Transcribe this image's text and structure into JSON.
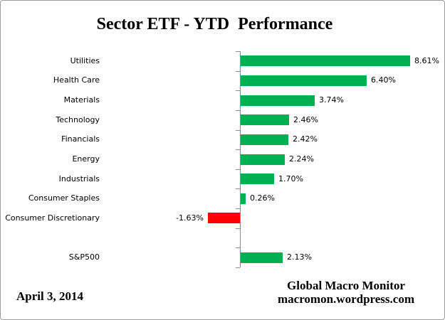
{
  "title": "Sector ETF - YTD  Performance",
  "footer": {
    "date": "April 3, 2014",
    "source_line1": "Global Macro Monitor",
    "source_line2": "macromon.wordpress.com"
  },
  "colors": {
    "positive_bar": "#00B050",
    "negative_bar": "#FF0000",
    "axis": "#8c8c8c",
    "text": "#000000",
    "background": "#ffffff",
    "frame_border": "#9a9a9a"
  },
  "chart_data": {
    "type": "bar",
    "orientation": "horizontal",
    "title": "Sector ETF - YTD  Performance",
    "xlabel": "",
    "ylabel": "",
    "xlim": [
      -2,
      10.4
    ],
    "grid": false,
    "legend": false,
    "value_label_format": "0.00%",
    "categories": [
      "Utilities",
      "Health Care",
      "Materials",
      "Technology",
      "Financials",
      "Energy",
      "Industrials",
      "Consumer Staples",
      "Consumer Discretionary",
      "",
      "S&P500"
    ],
    "values": [
      8.61,
      6.4,
      3.74,
      2.46,
      2.42,
      2.24,
      1.7,
      0.26,
      -1.63,
      null,
      2.13
    ],
    "data_labels": [
      "8.61%",
      "6.40%",
      "3.74%",
      "2.46%",
      "2.42%",
      "2.24%",
      "1.70%",
      "0.26%",
      "-1.63%",
      "",
      "2.13%"
    ]
  }
}
